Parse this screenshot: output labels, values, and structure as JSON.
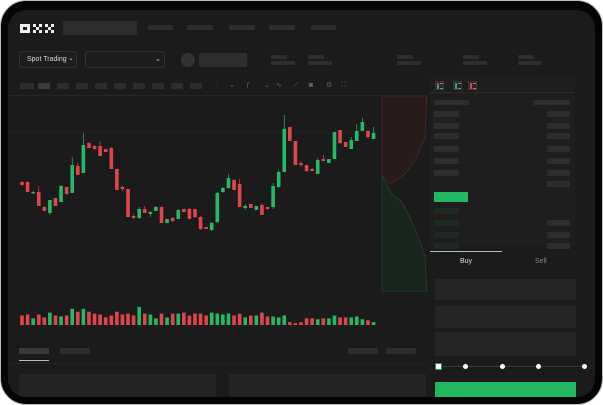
{
  "header": {
    "logo": "OKX",
    "nav_count": 5
  },
  "market_bar": {
    "mode_dropdown": "Spot Trading",
    "chevron": "chevron-down-icon"
  },
  "toolbar": {
    "icons": [
      "candle-type-icon",
      "chevron-down-icon",
      "indicator-icon",
      "chevron-down-icon",
      "line-icon",
      "ruler-icon",
      "camera-icon",
      "settings-icon",
      "fullscreen-icon"
    ]
  },
  "order_book": {
    "view_icons": [
      "book-both-icon",
      "book-bids-icon",
      "book-asks-icon"
    ]
  },
  "trade_panel": {
    "tabs": [
      {
        "label": "Buy",
        "active": true
      },
      {
        "label": "Sell",
        "active": false
      }
    ],
    "slider_percent": 0,
    "slider_steps": [
      0,
      25,
      50,
      75,
      100
    ]
  },
  "colors": {
    "up": "#26b866",
    "down": "#e0454c",
    "bg": "#1b1b1b"
  },
  "chart_data": {
    "type": "candlestick",
    "ylim": [
      0,
      125
    ],
    "ohlc": [
      [
        53,
        54,
        49,
        50
      ],
      [
        53,
        54,
        43,
        43
      ],
      [
        42,
        44,
        41,
        43
      ],
      [
        43,
        49,
        29,
        29
      ],
      [
        28,
        29,
        24,
        24
      ],
      [
        22,
        35,
        20,
        35
      ],
      [
        37,
        37,
        29,
        29
      ],
      [
        33,
        50,
        33,
        49
      ],
      [
        48,
        48,
        40,
        41
      ],
      [
        42,
        78,
        42,
        70
      ],
      [
        69,
        72,
        60,
        60
      ],
      [
        62,
        102,
        62,
        90
      ],
      [
        92,
        93,
        87,
        87
      ],
      [
        89,
        90,
        85,
        86
      ],
      [
        89,
        94,
        79,
        79
      ],
      [
        86,
        86,
        83,
        83
      ],
      [
        87,
        88,
        66,
        66
      ],
      [
        66,
        66,
        45,
        45
      ],
      [
        48,
        49,
        44,
        46
      ],
      [
        46,
        46,
        18,
        18
      ],
      [
        19,
        21,
        16,
        17
      ],
      [
        17,
        28,
        16,
        26
      ],
      [
        26,
        29,
        22,
        22
      ],
      [
        21,
        24,
        18,
        23
      ],
      [
        24,
        29,
        24,
        28
      ],
      [
        28,
        29,
        12,
        12
      ],
      [
        12,
        16,
        12,
        16
      ],
      [
        17,
        18,
        13,
        14
      ],
      [
        16,
        26,
        16,
        25
      ],
      [
        26,
        26,
        23,
        23
      ],
      [
        26,
        27,
        16,
        16
      ],
      [
        26,
        26,
        17,
        18
      ],
      [
        18,
        19,
        5,
        6
      ],
      [
        8,
        8,
        6,
        6
      ],
      [
        5,
        13,
        4,
        12
      ],
      [
        13,
        43,
        12,
        42
      ],
      [
        43,
        48,
        42,
        47
      ],
      [
        47,
        61,
        46,
        57
      ],
      [
        55,
        56,
        45,
        45
      ],
      [
        51,
        56,
        28,
        28
      ],
      [
        27,
        31,
        25,
        29
      ],
      [
        31,
        31,
        27,
        27
      ],
      [
        25,
        29,
        25,
        29
      ],
      [
        30,
        32,
        20,
        20
      ],
      [
        28,
        28,
        25,
        26
      ],
      [
        28,
        52,
        26,
        49
      ],
      [
        48,
        65,
        47,
        63
      ],
      [
        63,
        120,
        63,
        106
      ],
      [
        108,
        108,
        94,
        94
      ],
      [
        94,
        94,
        70,
        70
      ],
      [
        72,
        73,
        68,
        70
      ],
      [
        70,
        70,
        63,
        64
      ],
      [
        66,
        67,
        64,
        64
      ],
      [
        61,
        77,
        61,
        75
      ],
      [
        76,
        80,
        74,
        74
      ],
      [
        72,
        76,
        72,
        76
      ],
      [
        76,
        103,
        76,
        103
      ],
      [
        105,
        105,
        91,
        92
      ],
      [
        93,
        93,
        88,
        88
      ],
      [
        86,
        98,
        86,
        95
      ],
      [
        94,
        111,
        94,
        104
      ],
      [
        104,
        117,
        104,
        113
      ],
      [
        104,
        105,
        96,
        98
      ],
      [
        96,
        108,
        96,
        102
      ]
    ],
    "volume": [
      10,
      11,
      7,
      11,
      8,
      13,
      10,
      9,
      10,
      17,
      14,
      17,
      14,
      12,
      11,
      8,
      10,
      14,
      11,
      12,
      10,
      19,
      12,
      11,
      7,
      12,
      8,
      12,
      12,
      13,
      10,
      12,
      12,
      10,
      13,
      12,
      11,
      12,
      10,
      12,
      8,
      10,
      10,
      13,
      9,
      9,
      8,
      10,
      3,
      2,
      3,
      7,
      7,
      6,
      7,
      7,
      10,
      8,
      8,
      8,
      9,
      6,
      5,
      3
    ]
  }
}
